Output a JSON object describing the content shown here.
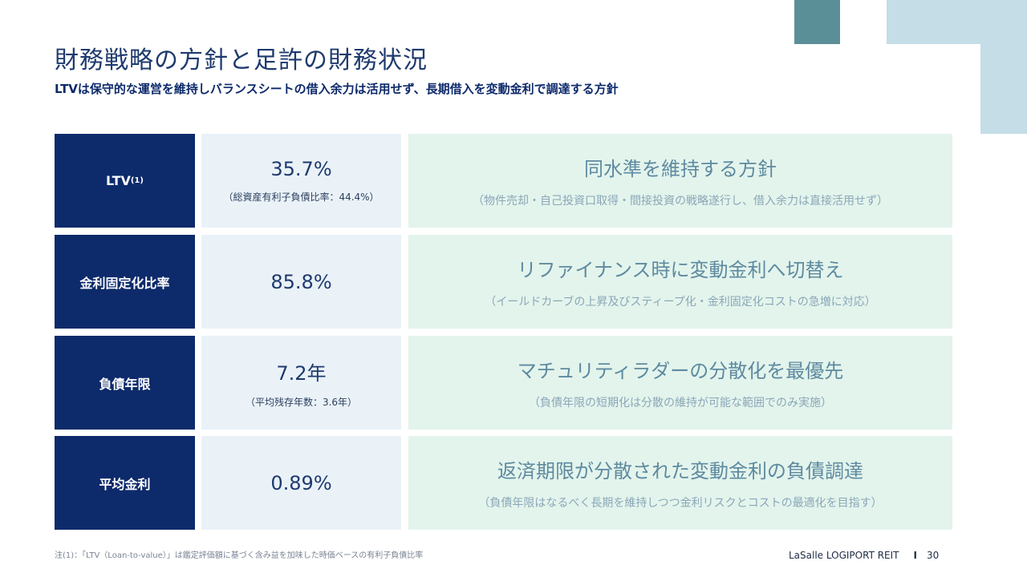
{
  "colors": {
    "navy": "#0d2a6b",
    "value_bg": "#eaf2f8",
    "policy_bg": "#e3f4ec",
    "policy_text": "#5e8aa0",
    "accent_teal": "#5b8f98",
    "accent_light_blue": "#c5dde7"
  },
  "slide": {
    "title": "財務戦略の方針と足許の財務状況",
    "subtitle": "LTVは保守的な運営を維持しバランスシートの借入余力は活用せず、長期借入を変動金利で調達する方針"
  },
  "rows": [
    {
      "label": "LTV",
      "label_sup": "(1)",
      "value": "35.7%",
      "value_note": "（総資産有利子負債比率：44.4%）",
      "policy": "同水準を維持する方針",
      "policy_note": "（物件売却・自己投資口取得・間接投資の戦略遂行し、借入余力は直接活用せず）"
    },
    {
      "label": "金利固定化比率",
      "value": "85.8%",
      "value_note": "",
      "policy": "リファイナンス時に変動金利へ切替え",
      "policy_note": "（イールドカーブの上昇及びスティープ化・金利固定化コストの急増に対応）"
    },
    {
      "label": "負債年限",
      "value": "7.2年",
      "value_note": "（平均残存年数：3.6年）",
      "policy": "マチュリティラダーの分散化を最優先",
      "policy_note": "（負債年限の短期化は分散の維持が可能な範囲でのみ実施）"
    },
    {
      "label": "平均金利",
      "value": "0.89%",
      "value_note": "",
      "policy": "返済期限が分散された変動金利の負債調達",
      "policy_note": "（負債年限はなるべく長期を維持しつつ金利リスクとコストの最適化を目指す）"
    }
  ],
  "footer": {
    "note": "注(1)：「LTV（Loan-to-value）」は鑑定評価額に基づく含み益を加味した時価ベースの有利子負債比率",
    "brand": "LaSalle LOGIPORT REIT",
    "separator": "I",
    "page_number": "30"
  }
}
